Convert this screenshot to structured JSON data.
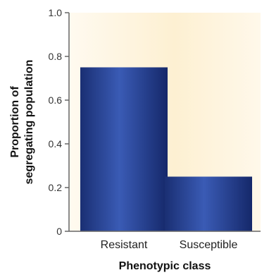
{
  "chart_data": {
    "type": "bar",
    "categories": [
      "Resistant",
      "Susceptible"
    ],
    "values": [
      0.75,
      0.25
    ],
    "xlabel": "Phenotypic class",
    "ylabel_lines": [
      "Proportion of",
      "segregating population"
    ],
    "ylim": [
      0,
      1.0
    ],
    "yticks": [
      "0",
      "0.2",
      "0.4",
      "0.6",
      "0.8",
      "1.0"
    ],
    "grid": false,
    "bar_color": "#1f3a8a",
    "bar_highlight": "#3d5cb8",
    "panel_color": "#fdf3dc"
  }
}
